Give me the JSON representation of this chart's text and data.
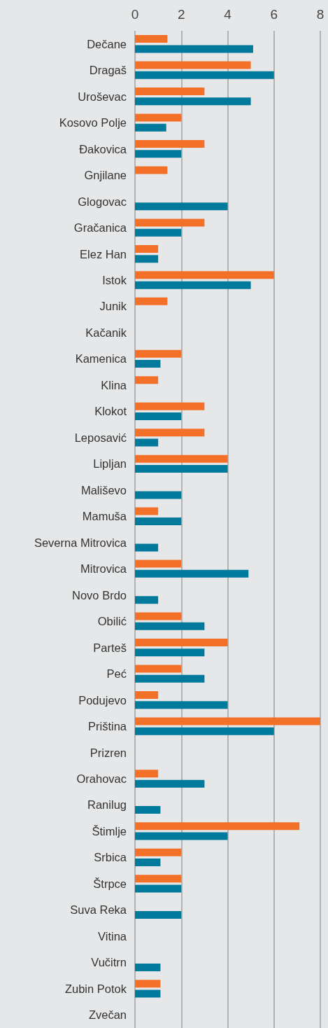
{
  "chart_data": {
    "type": "bar",
    "orientation": "horizontal",
    "categories": [
      "Dečane",
      "Dragaš",
      "Uroševac",
      "Kosovo Polje",
      "Đakovica",
      "Gnjilane",
      "Glogovac",
      "Gračanica",
      "Elez Han",
      "Istok",
      "Junik",
      "Kačanik",
      "Kamenica",
      "Klina",
      "Klokot",
      "Leposavić",
      "Lipljan",
      "Mališevo",
      "Mamuša",
      "Severna Mitrovica",
      "Mitrovica",
      "Novo Brdo",
      "Obilić",
      "Parteš",
      "Peć",
      "Podujevo",
      "Priština",
      "Prizren",
      "Orahovac",
      "Ranilug",
      "Štimlje",
      "Srbica",
      "Štrpce",
      "Suva Reka",
      "Vitina",
      "Vučitrn",
      "Zubin Potok",
      "Zvečan"
    ],
    "series": [
      {
        "color": "#f37029",
        "values": [
          1.4,
          5,
          3,
          2,
          3,
          1.4,
          null,
          3,
          1,
          6,
          1.4,
          null,
          2,
          1,
          3,
          3,
          4,
          null,
          1,
          null,
          2,
          null,
          2,
          4,
          2,
          1,
          8,
          null,
          1,
          null,
          7.1,
          2,
          2,
          null,
          null,
          null,
          1.1,
          null
        ]
      },
      {
        "color": "#007a9c",
        "values": [
          5.1,
          6,
          5,
          1.35,
          2,
          null,
          4,
          2,
          1,
          5,
          null,
          null,
          1.1,
          null,
          2,
          1,
          4,
          2,
          2,
          1,
          4.9,
          1,
          3,
          3,
          3,
          4,
          6,
          null,
          3,
          1.1,
          4,
          1.1,
          2,
          2,
          null,
          1.1,
          1.1,
          null
        ]
      }
    ],
    "xlim": [
      0,
      8
    ],
    "xticks": [
      0,
      2,
      4,
      6,
      8
    ],
    "grid": "x"
  }
}
